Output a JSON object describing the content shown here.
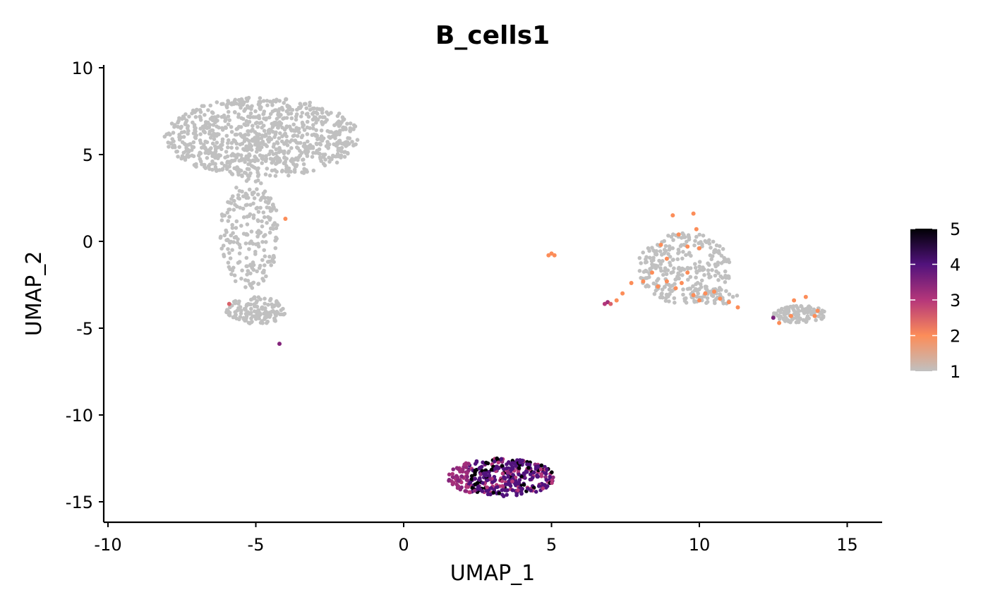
{
  "chart_data": {
    "type": "scatter",
    "title": "B_cells1",
    "xlabel": "UMAP_1",
    "ylabel": "UMAP_2",
    "xlim": [
      -10.2,
      16.2
    ],
    "ylim": [
      -16.2,
      10.2
    ],
    "xticks": [
      -10,
      -5,
      0,
      5,
      10,
      15
    ],
    "yticks": [
      -15,
      -10,
      -5,
      0,
      5,
      10
    ],
    "xtick_labels": [
      "-10",
      "-5",
      "0",
      "5",
      "10",
      "15"
    ],
    "ytick_labels": [
      "-15",
      "-10",
      "-5",
      "0",
      "5",
      "10"
    ],
    "grid": false,
    "legend": {
      "placement": "right",
      "type": "colorbar",
      "min": 1,
      "max": 5,
      "ticks": [
        5,
        4,
        3,
        2,
        1
      ],
      "tick_labels": [
        "5",
        "4",
        "3",
        "2",
        "1"
      ]
    },
    "colorscale": [
      "#c0c0c0",
      "#fc8d59",
      "#b5367a",
      "#51127c",
      "#000004"
    ],
    "background_color": "#c0c0c0",
    "clusters": [
      {
        "name": "upper-left-head",
        "shape": "ellipse",
        "cx": -4.8,
        "cy": 6.0,
        "rx": 3.3,
        "ry": 2.3,
        "n": 900,
        "value": 1
      },
      {
        "name": "upper-left-stem",
        "shape": "ellipse",
        "cx": -5.2,
        "cy": 0.5,
        "rx": 1.0,
        "ry": 3.2,
        "n": 220,
        "value": 1
      },
      {
        "name": "lower-left-bulb",
        "shape": "ellipse",
        "cx": -5.0,
        "cy": -4.0,
        "rx": 1.0,
        "ry": 0.8,
        "n": 140,
        "value": 1
      },
      {
        "name": "right-triangle",
        "shape": "ellipse",
        "cx": 9.5,
        "cy": -1.5,
        "rx": 1.6,
        "ry": 2.0,
        "n": 260,
        "value": 1
      },
      {
        "name": "right-triangle-base",
        "shape": "ellipse",
        "cx": 10.0,
        "cy": -3.2,
        "rx": 1.4,
        "ry": 0.5,
        "n": 60,
        "value": 1
      },
      {
        "name": "far-right-blob",
        "shape": "ellipse",
        "cx": 13.4,
        "cy": -4.2,
        "rx": 0.9,
        "ry": 0.5,
        "n": 110,
        "value": 1
      },
      {
        "name": "bottom-oval",
        "shape": "ellipse",
        "cx": 3.3,
        "cy": -13.6,
        "rx": 1.8,
        "ry": 1.1,
        "n": 380,
        "value": 4
      }
    ],
    "highlight_points": [
      [
        -4.0,
        1.3,
        2
      ],
      [
        -5.9,
        -3.6,
        2.5
      ],
      [
        -4.2,
        -5.9,
        3.5
      ],
      [
        4.9,
        -0.8,
        2
      ],
      [
        5.0,
        -0.7,
        2
      ],
      [
        5.1,
        -0.8,
        2
      ],
      [
        6.8,
        -3.6,
        3
      ],
      [
        6.9,
        -3.5,
        3.2
      ],
      [
        7.0,
        -3.6,
        2.5
      ],
      [
        7.2,
        -3.4,
        2
      ],
      [
        7.4,
        -3.0,
        2
      ],
      [
        7.7,
        -2.4,
        2
      ],
      [
        8.1,
        -2.3,
        2
      ],
      [
        8.6,
        -2.6,
        2
      ],
      [
        8.9,
        -2.3,
        2
      ],
      [
        9.2,
        -2.7,
        2
      ],
      [
        9.4,
        -2.4,
        2
      ],
      [
        9.6,
        -1.8,
        2
      ],
      [
        9.8,
        -3.1,
        2
      ],
      [
        10.0,
        -3.4,
        2
      ],
      [
        10.2,
        -3.0,
        2
      ],
      [
        10.5,
        -2.9,
        2
      ],
      [
        10.7,
        -3.3,
        2
      ],
      [
        11.0,
        -3.5,
        2
      ],
      [
        11.3,
        -3.8,
        2
      ],
      [
        9.1,
        1.5,
        2
      ],
      [
        9.8,
        1.6,
        2
      ],
      [
        9.9,
        0.7,
        2
      ],
      [
        9.6,
        -0.3,
        2
      ],
      [
        10.0,
        -0.4,
        2
      ],
      [
        8.7,
        -0.2,
        2
      ],
      [
        9.3,
        0.4,
        2
      ],
      [
        8.4,
        -1.8,
        2
      ],
      [
        8.9,
        -1.0,
        2
      ],
      [
        12.5,
        -4.4,
        3.6
      ],
      [
        12.7,
        -4.7,
        2
      ],
      [
        13.2,
        -3.4,
        2
      ],
      [
        13.6,
        -3.2,
        2
      ],
      [
        14.0,
        -4.0,
        2
      ],
      [
        13.9,
        -4.3,
        2
      ],
      [
        13.1,
        -4.3,
        2
      ]
    ]
  }
}
